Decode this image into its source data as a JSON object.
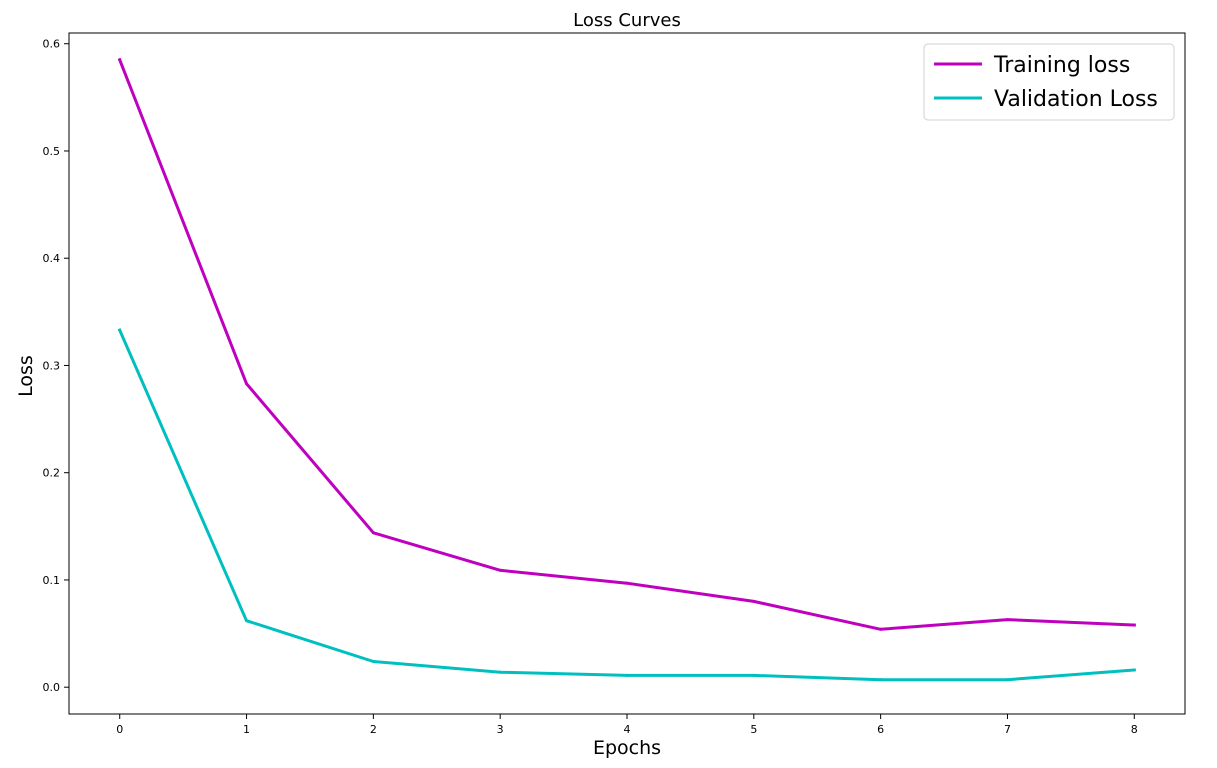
{
  "chart_data": {
    "type": "line",
    "title": "Loss Curves",
    "xlabel": "Epochs",
    "ylabel": "Loss",
    "x": [
      0,
      1,
      2,
      3,
      4,
      5,
      6,
      7,
      8
    ],
    "xlim": [
      -0.4,
      8.4
    ],
    "ylim": [
      -0.025,
      0.61
    ],
    "xticks": [
      0,
      1,
      2,
      3,
      4,
      5,
      6,
      7,
      8
    ],
    "yticks": [
      0.0,
      0.1,
      0.2,
      0.3,
      0.4,
      0.5,
      0.6
    ],
    "ytick_labels": [
      "0.0",
      "0.1",
      "0.2",
      "0.3",
      "0.4",
      "0.5",
      "0.6"
    ],
    "grid": false,
    "legend_position": "top-right",
    "series": [
      {
        "name": "Training loss",
        "color": "#bf00bf",
        "values": [
          0.585,
          0.283,
          0.144,
          0.109,
          0.097,
          0.08,
          0.054,
          0.063,
          0.058
        ]
      },
      {
        "name": "Validation Loss",
        "color": "#00bfbf",
        "values": [
          0.333,
          0.062,
          0.024,
          0.014,
          0.011,
          0.011,
          0.007,
          0.007,
          0.016
        ]
      }
    ]
  }
}
